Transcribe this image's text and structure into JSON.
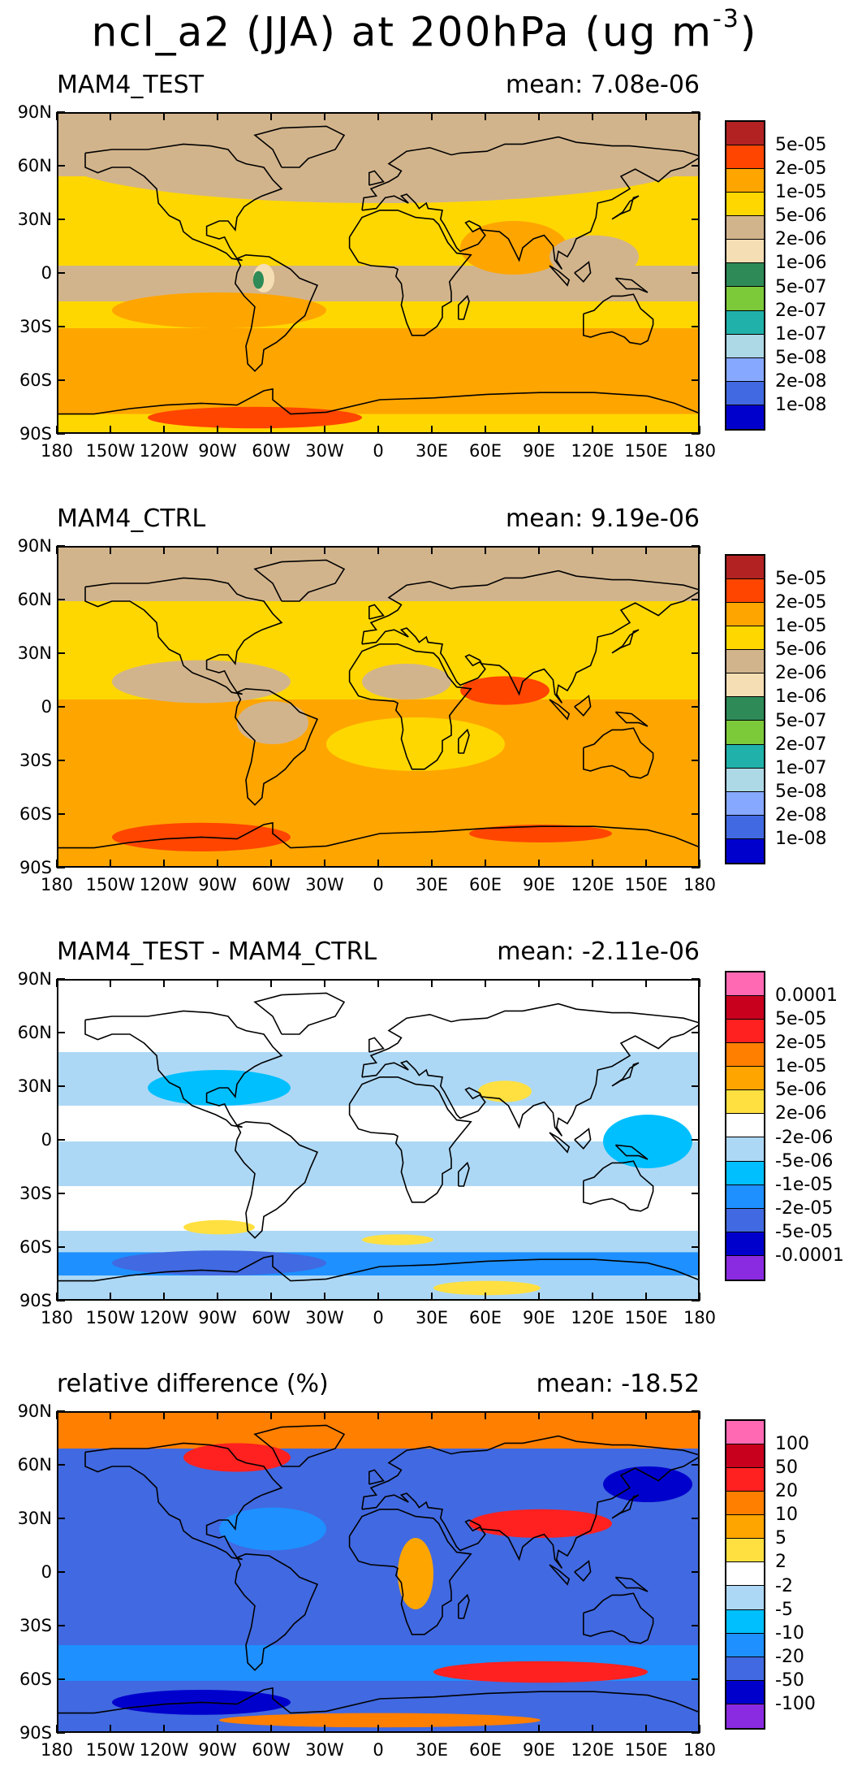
{
  "title": {
    "text": "ncl_a2 (JJA) at 200hPa (ug m",
    "sup": "-3",
    "close": ")"
  },
  "panels": [
    {
      "id": "test",
      "title": "MAM4_TEST",
      "mean": "mean: 7.08e-06",
      "colorbar": {
        "labels": [
          "5e-05",
          "2e-05",
          "1e-05",
          "5e-06",
          "2e-06",
          "1e-06",
          "5e-07",
          "2e-07",
          "1e-07",
          "5e-08",
          "2e-08",
          "1e-08"
        ],
        "colors": [
          "#B22222",
          "#FF4500",
          "#FFA500",
          "#FFD700",
          "#D2B48C",
          "#F5DEB3",
          "#2E8B57",
          "#7CC93A",
          "#20B2AA",
          "#ADD8E6",
          "#87A8FF",
          "#4169E1",
          "#0000CD"
        ]
      },
      "bands": [
        {
          "lat_from": 90,
          "lat_to": 55,
          "color": "#D2B48C"
        },
        {
          "lat_from": 55,
          "lat_to": 30,
          "color": "#FFD700"
        },
        {
          "lat_from": 30,
          "lat_to": 5,
          "color": "#FFD700"
        },
        {
          "lat_from": 5,
          "lat_to": -15,
          "color": "#D2B48C"
        },
        {
          "lat_from": -15,
          "lat_to": -30,
          "color": "#FFD700"
        },
        {
          "lat_from": -30,
          "lat_to": -62,
          "color": "#FFA500"
        },
        {
          "lat_from": -62,
          "lat_to": -78,
          "color": "#FFA500"
        },
        {
          "lat_from": -78,
          "lat_to": -90,
          "color": "#FFD700"
        }
      ],
      "blobs": [
        {
          "lon": 0,
          "lat": 65,
          "rx": 180,
          "ry": 25,
          "color": "#D2B48C"
        },
        {
          "lon": 75,
          "lat": 15,
          "rx": 30,
          "ry": 15,
          "color": "#FFA500"
        },
        {
          "lon": -90,
          "lat": -20,
          "rx": 60,
          "ry": 10,
          "color": "#FFA500"
        },
        {
          "lon": -70,
          "lat": -80,
          "rx": 60,
          "ry": 6,
          "color": "#FF4500"
        },
        {
          "lon": -65,
          "lat": -2,
          "rx": 6,
          "ry": 8,
          "color": "#F5DEB3"
        },
        {
          "lon": -68,
          "lat": -3,
          "rx": 3,
          "ry": 5,
          "color": "#2E8B57"
        },
        {
          "lon": 120,
          "lat": 10,
          "rx": 25,
          "ry": 12,
          "color": "#D2B48C"
        }
      ]
    },
    {
      "id": "ctrl",
      "title": "MAM4_CTRL",
      "mean": "mean: 9.19e-06",
      "colorbar": {
        "labels": [
          "5e-05",
          "2e-05",
          "1e-05",
          "5e-06",
          "2e-06",
          "1e-06",
          "5e-07",
          "2e-07",
          "1e-07",
          "5e-08",
          "2e-08",
          "1e-08"
        ],
        "colors": [
          "#B22222",
          "#FF4500",
          "#FFA500",
          "#FFD700",
          "#D2B48C",
          "#F5DEB3",
          "#2E8B57",
          "#7CC93A",
          "#20B2AA",
          "#ADD8E6",
          "#87A8FF",
          "#4169E1",
          "#0000CD"
        ]
      },
      "bands": [
        {
          "lat_from": 90,
          "lat_to": 60,
          "color": "#D2B48C"
        },
        {
          "lat_from": 60,
          "lat_to": 25,
          "color": "#FFD700"
        },
        {
          "lat_from": 25,
          "lat_to": 5,
          "color": "#FFD700"
        },
        {
          "lat_from": 5,
          "lat_to": -15,
          "color": "#FFA500"
        },
        {
          "lat_from": -15,
          "lat_to": -50,
          "color": "#FFA500"
        },
        {
          "lat_from": -50,
          "lat_to": -90,
          "color": "#FFA500"
        }
      ],
      "blobs": [
        {
          "lon": -100,
          "lat": 15,
          "rx": 50,
          "ry": 12,
          "color": "#D2B48C"
        },
        {
          "lon": 15,
          "lat": 15,
          "rx": 25,
          "ry": 10,
          "color": "#D2B48C"
        },
        {
          "lon": -60,
          "lat": -8,
          "rx": 20,
          "ry": 12,
          "color": "#D2B48C"
        },
        {
          "lon": 70,
          "lat": 10,
          "rx": 25,
          "ry": 8,
          "color": "#FF4500"
        },
        {
          "lon": -100,
          "lat": -72,
          "rx": 50,
          "ry": 8,
          "color": "#FF4500"
        },
        {
          "lon": 90,
          "lat": -70,
          "rx": 40,
          "ry": 5,
          "color": "#FF4500"
        },
        {
          "lon": 20,
          "lat": -20,
          "rx": 50,
          "ry": 15,
          "color": "#FFD700"
        }
      ]
    },
    {
      "id": "diff",
      "title": "MAM4_TEST - MAM4_CTRL",
      "mean": "mean: -2.11e-06",
      "colorbar": {
        "labels": [
          "0.0001",
          "5e-05",
          "2e-05",
          "1e-05",
          "5e-06",
          "2e-06",
          "-2e-06",
          "-5e-06",
          "-1e-05",
          "-2e-05",
          "-5e-05",
          "-0.0001"
        ],
        "colors": [
          "#FF69B4",
          "#C8001E",
          "#FF2020",
          "#FF7F00",
          "#FFA500",
          "#FFE040",
          "#FFFFFF",
          "#ADD8F5",
          "#00BFFF",
          "#1E90FF",
          "#4169E1",
          "#0000CD",
          "#8A2BE2"
        ]
      },
      "bands": [
        {
          "lat_from": 90,
          "lat_to": 50,
          "color": "#FFFFFF"
        },
        {
          "lat_from": 50,
          "lat_to": 20,
          "color": "#ADD8F5"
        },
        {
          "lat_from": 20,
          "lat_to": 0,
          "color": "#FFFFFF"
        },
        {
          "lat_from": 0,
          "lat_to": -25,
          "color": "#ADD8F5"
        },
        {
          "lat_from": -25,
          "lat_to": -50,
          "color": "#FFFFFF"
        },
        {
          "lat_from": -50,
          "lat_to": -62,
          "color": "#ADD8F5"
        },
        {
          "lat_from": -62,
          "lat_to": -75,
          "color": "#1E90FF"
        },
        {
          "lat_from": -75,
          "lat_to": -90,
          "color": "#ADD8F5"
        }
      ],
      "blobs": [
        {
          "lon": -90,
          "lat": 30,
          "rx": 40,
          "ry": 10,
          "color": "#00BFFF"
        },
        {
          "lon": 70,
          "lat": 28,
          "rx": 15,
          "ry": 6,
          "color": "#FFE040"
        },
        {
          "lon": -90,
          "lat": -48,
          "rx": 20,
          "ry": 4,
          "color": "#FFE040"
        },
        {
          "lon": 10,
          "lat": -55,
          "rx": 20,
          "ry": 3,
          "color": "#FFE040"
        },
        {
          "lon": -90,
          "lat": -68,
          "rx": 60,
          "ry": 7,
          "color": "#4169E1"
        },
        {
          "lon": 60,
          "lat": -82,
          "rx": 30,
          "ry": 4,
          "color": "#FFE040"
        },
        {
          "lon": 150,
          "lat": 0,
          "rx": 25,
          "ry": 15,
          "color": "#00BFFF"
        }
      ]
    },
    {
      "id": "rel",
      "title": "relative difference (%)",
      "mean": "mean: -18.52",
      "colorbar": {
        "labels": [
          "100",
          "50",
          "20",
          "10",
          "5",
          "2",
          "-2",
          "-5",
          "-10",
          "-20",
          "-50",
          "-100"
        ],
        "colors": [
          "#FF69B4",
          "#C8001E",
          "#FF2020",
          "#FF7F00",
          "#FFA500",
          "#FFE040",
          "#FFFFFF",
          "#ADD8F5",
          "#00BFFF",
          "#1E90FF",
          "#4169E1",
          "#0000CD",
          "#8A2BE2"
        ]
      },
      "bands": [
        {
          "lat_from": 90,
          "lat_to": 70,
          "color": "#FF7F00"
        },
        {
          "lat_from": 70,
          "lat_to": 50,
          "color": "#4169E1"
        },
        {
          "lat_from": 50,
          "lat_to": 0,
          "color": "#4169E1"
        },
        {
          "lat_from": 0,
          "lat_to": -40,
          "color": "#4169E1"
        },
        {
          "lat_from": -40,
          "lat_to": -60,
          "color": "#1E90FF"
        },
        {
          "lat_from": -60,
          "lat_to": -90,
          "color": "#4169E1"
        }
      ],
      "blobs": [
        {
          "lon": -80,
          "lat": 65,
          "rx": 30,
          "ry": 8,
          "color": "#FF2020"
        },
        {
          "lon": 90,
          "lat": 28,
          "rx": 40,
          "ry": 8,
          "color": "#FF2020"
        },
        {
          "lon": 20,
          "lat": 0,
          "rx": 10,
          "ry": 20,
          "color": "#FFA500"
        },
        {
          "lon": 90,
          "lat": -55,
          "rx": 60,
          "ry": 6,
          "color": "#FF2020"
        },
        {
          "lon": 0,
          "lat": -82,
          "rx": 90,
          "ry": 4,
          "color": "#FF7F00"
        },
        {
          "lon": -100,
          "lat": -72,
          "rx": 50,
          "ry": 7,
          "color": "#0000CD"
        },
        {
          "lon": -60,
          "lat": 25,
          "rx": 30,
          "ry": 12,
          "color": "#1E90FF"
        },
        {
          "lon": 150,
          "lat": 50,
          "rx": 25,
          "ry": 10,
          "color": "#0000CD"
        }
      ]
    }
  ],
  "lat_ticks": [
    "90N",
    "60N",
    "30N",
    "0",
    "30S",
    "60S",
    "90S"
  ],
  "lon_ticks": [
    "180",
    "150W",
    "120W",
    "90W",
    "60W",
    "30W",
    "0",
    "30E",
    "60E",
    "90E",
    "120E",
    "150E",
    "180"
  ]
}
